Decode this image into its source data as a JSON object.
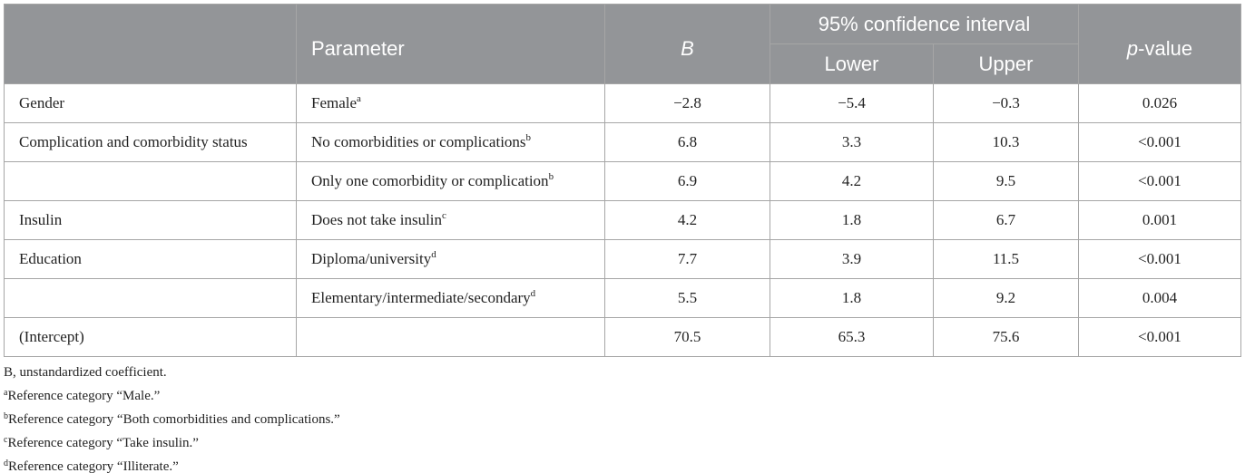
{
  "header": {
    "variable": "",
    "parameter": "Parameter",
    "b": "B",
    "ci": "95% confidence interval",
    "lower": "Lower",
    "upper": "Upper",
    "p_italic": "p",
    "p_rest": "-value"
  },
  "rows": [
    {
      "variable": "Gender",
      "parameter": "Female",
      "sup": "a",
      "b": "−2.8",
      "lower": "−5.4",
      "upper": "−0.3",
      "p": "0.026"
    },
    {
      "variable": "Complication and comorbidity status",
      "parameter": "No comorbidities or complications",
      "sup": "b",
      "b": "6.8",
      "lower": "3.3",
      "upper": "10.3",
      "p": "<0.001"
    },
    {
      "variable": "",
      "parameter": "Only one comorbidity or complication",
      "sup": "b",
      "b": "6.9",
      "lower": "4.2",
      "upper": "9.5",
      "p": "<0.001"
    },
    {
      "variable": "Insulin",
      "parameter": "Does not take insulin",
      "sup": "c",
      "b": "4.2",
      "lower": "1.8",
      "upper": "6.7",
      "p": "0.001"
    },
    {
      "variable": "Education",
      "parameter": "Diploma/university",
      "sup": "d",
      "b": "7.7",
      "lower": "3.9",
      "upper": "11.5",
      "p": "<0.001"
    },
    {
      "variable": "",
      "parameter": "Elementary/intermediate/secondary",
      "sup": "d",
      "b": "5.5",
      "lower": "1.8",
      "upper": "9.2",
      "p": "0.004"
    },
    {
      "variable": "(Intercept)",
      "parameter": "",
      "sup": "",
      "b": "70.5",
      "lower": "65.3",
      "upper": "75.6",
      "p": "<0.001"
    }
  ],
  "notes": [
    {
      "mark": "",
      "text": "B, unstandardized coefficient."
    },
    {
      "mark": "a",
      "text": "Reference category “Male.”"
    },
    {
      "mark": "b",
      "text": "Reference category “Both comorbidities and complications.”"
    },
    {
      "mark": "c",
      "text": "Reference category “Take insulin.”"
    },
    {
      "mark": "d",
      "text": "Reference category “Illiterate.”"
    }
  ]
}
